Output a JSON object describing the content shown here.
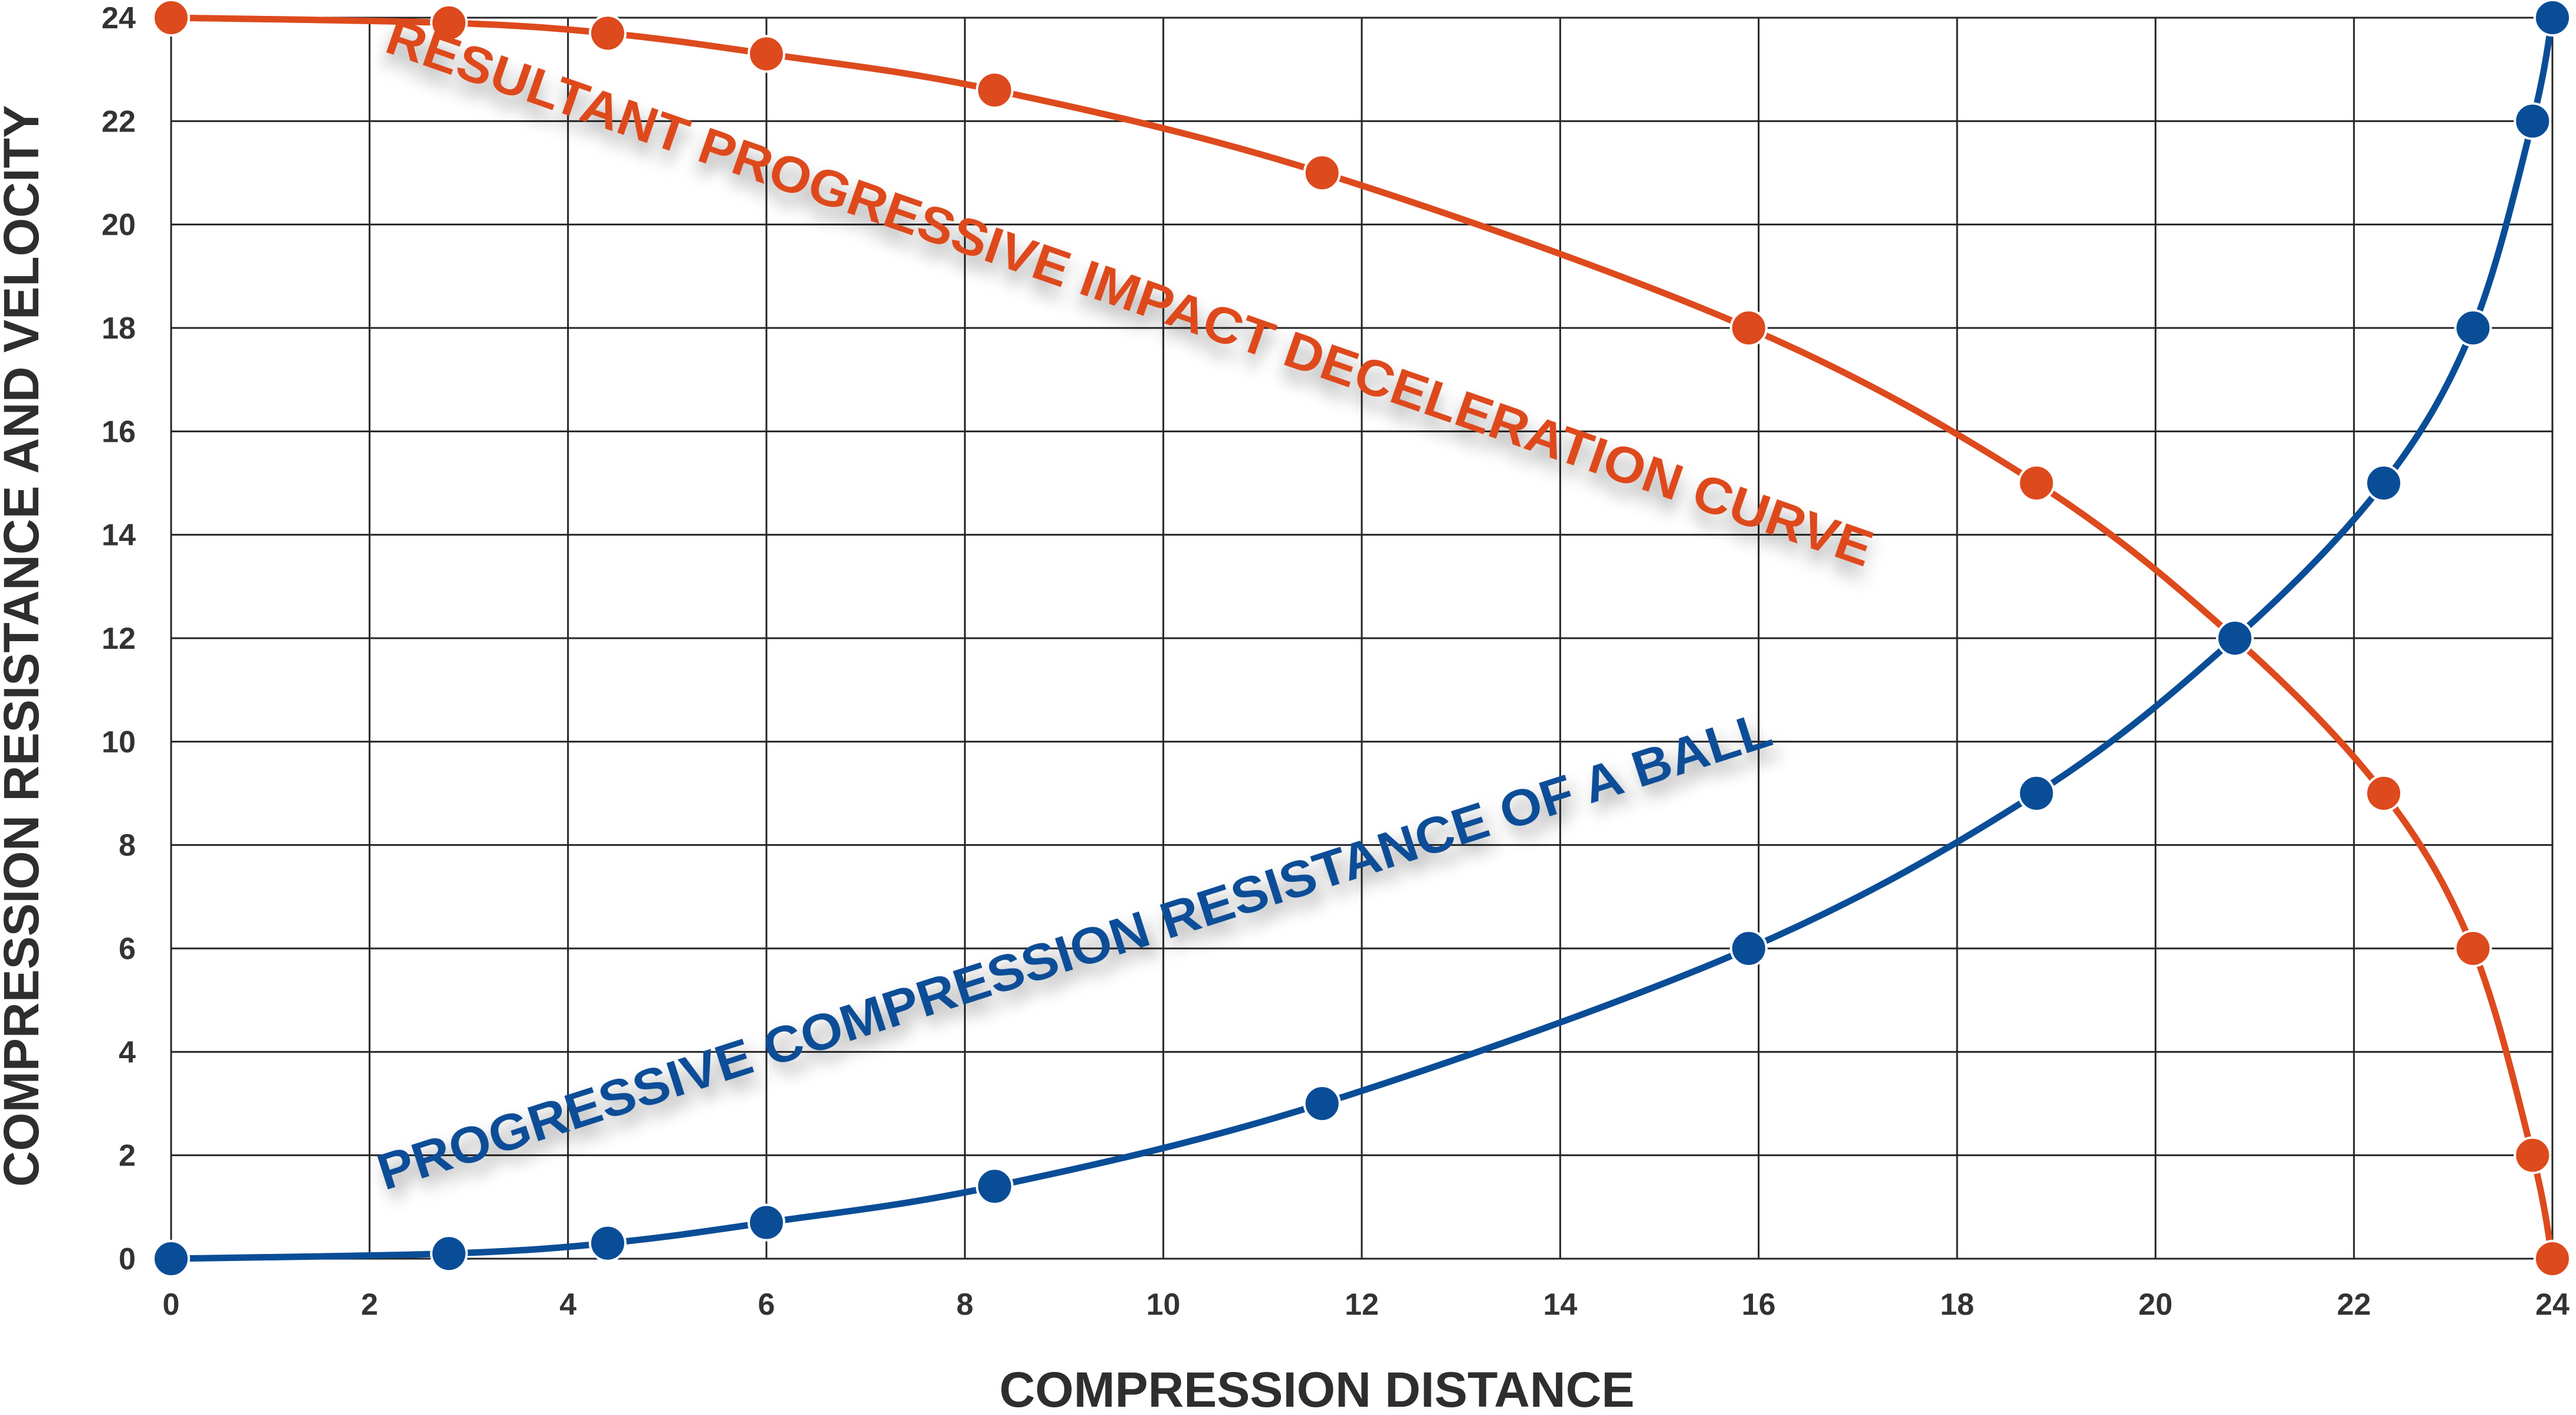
{
  "chart_data": {
    "type": "line",
    "title": "",
    "xlabel": "COMPRESSION DISTANCE",
    "ylabel": "COMPRESSION RESISTANCE AND VELOCITY",
    "xlim": [
      0,
      24
    ],
    "ylim": [
      0,
      24
    ],
    "x_ticks": [
      0,
      2,
      4,
      6,
      8,
      10,
      12,
      14,
      16,
      18,
      20,
      22,
      24
    ],
    "y_ticks": [
      0,
      2,
      4,
      6,
      8,
      10,
      12,
      14,
      16,
      18,
      20,
      22,
      24
    ],
    "grid": true,
    "series": [
      {
        "name": "RESULTANT PROGRESSIVE IMPACT DECELERATION CURVE",
        "color": "#dd4a1d",
        "points": [
          [
            0,
            24
          ],
          [
            2.8,
            23.9
          ],
          [
            4.4,
            23.7
          ],
          [
            6,
            23.3
          ],
          [
            8.3,
            22.6
          ],
          [
            11.6,
            21
          ],
          [
            15.9,
            18
          ],
          [
            18.8,
            15
          ],
          [
            20.8,
            12
          ],
          [
            22.3,
            9
          ],
          [
            23.2,
            6
          ],
          [
            23.8,
            2
          ],
          [
            24,
            0
          ]
        ]
      },
      {
        "name": "PROGRESSIVE COMPRESSION RESISTANCE OF A BALL",
        "color": "#0a4d97",
        "points": [
          [
            0,
            0
          ],
          [
            2.8,
            0.1
          ],
          [
            4.4,
            0.3
          ],
          [
            6,
            0.7
          ],
          [
            8.3,
            1.4
          ],
          [
            11.6,
            3
          ],
          [
            15.9,
            6
          ],
          [
            18.8,
            9
          ],
          [
            20.8,
            12
          ],
          [
            22.3,
            15
          ],
          [
            23.2,
            18
          ],
          [
            23.8,
            22
          ],
          [
            24,
            24
          ]
        ]
      }
    ]
  }
}
